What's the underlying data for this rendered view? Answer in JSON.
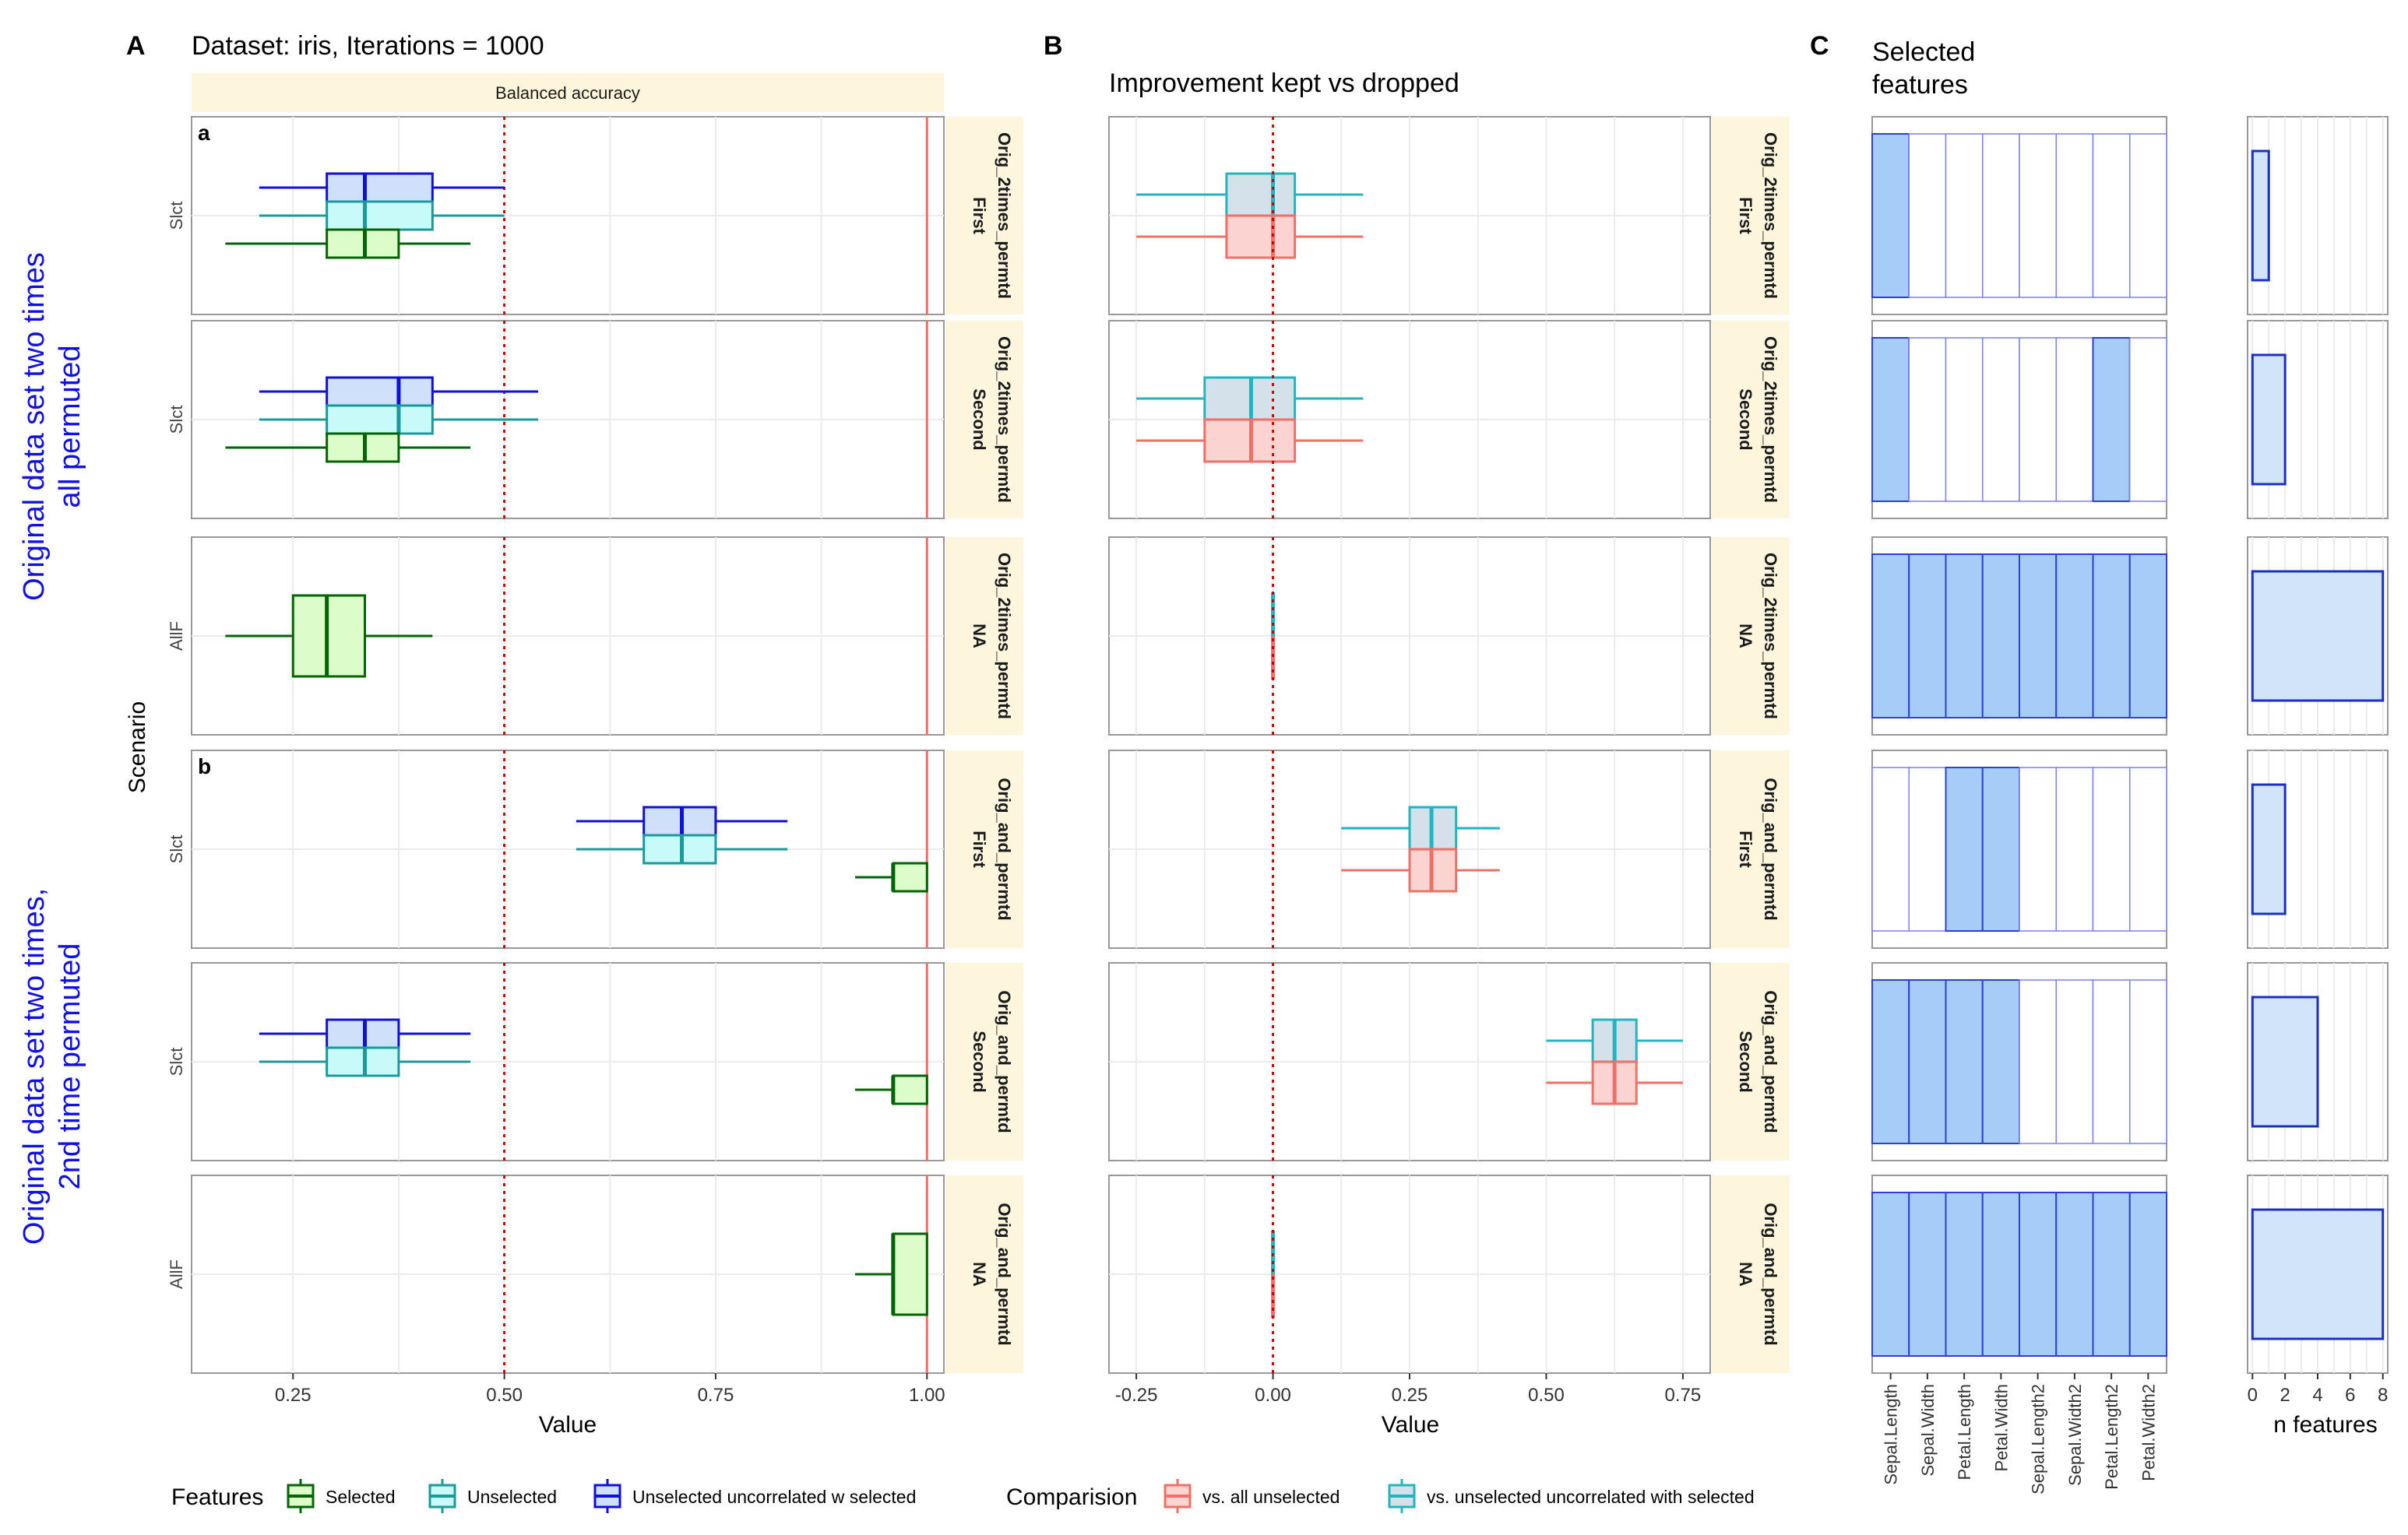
{
  "figure": {
    "panel_labels": {
      "A": "A",
      "B": "B",
      "C": "C"
    },
    "title_A": "Dataset: iris, Iterations = 1000",
    "strip_A": "Balanced accuracy",
    "title_B": "Improvement kept vs dropped",
    "title_C_line1": "Selected",
    "title_C_line2": "features",
    "side_label_top_line1": "Original data set two times",
    "side_label_top_line2": "all permuted",
    "side_label_bottom_line1": "Original data set two times,",
    "side_label_bottom_line2": "2nd time permuted",
    "scenario_axis_label": "Scenario",
    "row_group_tags": {
      "a": "a",
      "b": "b"
    },
    "colors": {
      "selected": "#006400",
      "selected_fill": "#dcfdc9",
      "unselected": "#1a9a9a",
      "unselected_fill": "#c9fafa",
      "uncorrelated": "#1010d8",
      "uncorrelated_fill": "#cfe0fa",
      "vs_all": "#f07067",
      "vs_all_fill": "#fbd3d0",
      "vs_uncor": "#22b5c0",
      "vs_uncor_fill": "#d4e1ea",
      "threshold": "#cc0000",
      "ref_line": "#f07067",
      "strip_fill": "#fdf5dc",
      "feature_fill": "#a6cdf7",
      "feature_line": "#2f3fcf",
      "nfeat_fill": "#d2e4f9",
      "nfeat_line": "#1c2fc5"
    }
  },
  "chart_data": [
    {
      "id": "A",
      "type": "boxplot",
      "orientation": "horizontal",
      "xlabel": "Value",
      "ylabel": "Scenario",
      "xlim": [
        0.13,
        1.02
      ],
      "xticks": [
        0.25,
        0.5,
        0.75,
        1.0
      ],
      "xtick_labels": [
        "0.25",
        "0.50",
        "0.75",
        "1.00"
      ],
      "threshold_line": 0.5,
      "reference_line": 1.0,
      "rows": [
        {
          "y_label": "Slct",
          "strip_line1": "Orig_2times_permtd",
          "strip_line2": "First",
          "tag": "a",
          "boxes": [
            {
              "series": "Unselected uncorrelated w selected",
              "whisker_low": 0.21,
              "q1": 0.29,
              "median": 0.335,
              "q3": 0.415,
              "whisker_high": 0.5
            },
            {
              "series": "Unselected",
              "whisker_low": 0.21,
              "q1": 0.29,
              "median": 0.335,
              "q3": 0.415,
              "whisker_high": 0.5
            },
            {
              "series": "Selected",
              "whisker_low": 0.17,
              "q1": 0.29,
              "median": 0.335,
              "q3": 0.375,
              "whisker_high": 0.46
            }
          ]
        },
        {
          "y_label": "Slct",
          "strip_line1": "Orig_2times_permtd",
          "strip_line2": "Second",
          "tag": "",
          "boxes": [
            {
              "series": "Unselected uncorrelated w selected",
              "whisker_low": 0.21,
              "q1": 0.29,
              "median": 0.375,
              "q3": 0.415,
              "whisker_high": 0.54
            },
            {
              "series": "Unselected",
              "whisker_low": 0.21,
              "q1": 0.29,
              "median": 0.375,
              "q3": 0.415,
              "whisker_high": 0.54
            },
            {
              "series": "Selected",
              "whisker_low": 0.17,
              "q1": 0.29,
              "median": 0.335,
              "q3": 0.375,
              "whisker_high": 0.46
            }
          ]
        },
        {
          "y_label": "AllF",
          "strip_line1": "Orig_2times_permtd",
          "strip_line2": "NA",
          "tag": "",
          "boxes": [
            {
              "series": "Selected",
              "whisker_low": 0.17,
              "q1": 0.25,
              "median": 0.29,
              "q3": 0.335,
              "whisker_high": 0.415
            }
          ]
        },
        {
          "y_label": "Slct",
          "strip_line1": "Orig_and_permtd",
          "strip_line2": "First",
          "tag": "b",
          "boxes": [
            {
              "series": "Unselected uncorrelated w selected",
              "whisker_low": 0.585,
              "q1": 0.665,
              "median": 0.71,
              "q3": 0.75,
              "whisker_high": 0.835
            },
            {
              "series": "Unselected",
              "whisker_low": 0.585,
              "q1": 0.665,
              "median": 0.71,
              "q3": 0.75,
              "whisker_high": 0.835
            },
            {
              "series": "Selected",
              "whisker_low": 0.915,
              "q1": 0.96,
              "median": 0.96,
              "q3": 1.0,
              "whisker_high": 1.0
            }
          ]
        },
        {
          "y_label": "Slct",
          "strip_line1": "Orig_and_permtd",
          "strip_line2": "Second",
          "tag": "",
          "boxes": [
            {
              "series": "Unselected uncorrelated w selected",
              "whisker_low": 0.21,
              "q1": 0.29,
              "median": 0.335,
              "q3": 0.375,
              "whisker_high": 0.46
            },
            {
              "series": "Unselected",
              "whisker_low": 0.21,
              "q1": 0.29,
              "median": 0.335,
              "q3": 0.375,
              "whisker_high": 0.46
            },
            {
              "series": "Selected",
              "whisker_low": 0.915,
              "q1": 0.96,
              "median": 0.96,
              "q3": 1.0,
              "whisker_high": 1.0
            }
          ]
        },
        {
          "y_label": "AllF",
          "strip_line1": "Orig_and_permtd",
          "strip_line2": "NA",
          "tag": "",
          "boxes": [
            {
              "series": "Selected",
              "whisker_low": 0.915,
              "q1": 0.96,
              "median": 0.96,
              "q3": 1.0,
              "whisker_high": 1.0
            }
          ]
        }
      ],
      "legend": {
        "title": "Features",
        "entries": [
          {
            "name": "Selected",
            "series": "Selected"
          },
          {
            "name": "Unselected",
            "series": "Unselected"
          },
          {
            "name": "Unselected uncorrelated w selected",
            "series": "Unselected uncorrelated w selected"
          }
        ]
      }
    },
    {
      "id": "B",
      "type": "boxplot",
      "orientation": "horizontal",
      "title": "Improvement kept vs dropped",
      "xlabel": "Value",
      "xlim": [
        -0.3,
        0.8
      ],
      "xticks": [
        -0.25,
        0.0,
        0.25,
        0.5,
        0.75
      ],
      "xtick_labels": [
        "-0.25",
        "0.00",
        "0.25",
        "0.50",
        "0.75"
      ],
      "threshold_line": 0.0,
      "rows": [
        {
          "strip_line1": "Orig_2times_permtd",
          "strip_line2": "First",
          "boxes": [
            {
              "series": "vs. unselected uncorrelated with selected",
              "whisker_low": -0.25,
              "q1": -0.085,
              "median": 0.0,
              "q3": 0.04,
              "whisker_high": 0.165
            },
            {
              "series": "vs. all unselected",
              "whisker_low": -0.25,
              "q1": -0.085,
              "median": 0.0,
              "q3": 0.04,
              "whisker_high": 0.165
            }
          ]
        },
        {
          "strip_line1": "Orig_2times_permtd",
          "strip_line2": "Second",
          "boxes": [
            {
              "series": "vs. unselected uncorrelated with selected",
              "whisker_low": -0.25,
              "q1": -0.125,
              "median": -0.04,
              "q3": 0.04,
              "whisker_high": 0.165
            },
            {
              "series": "vs. all unselected",
              "whisker_low": -0.25,
              "q1": -0.125,
              "median": -0.04,
              "q3": 0.04,
              "whisker_high": 0.165
            }
          ]
        },
        {
          "strip_line1": "Orig_2times_permtd",
          "strip_line2": "NA",
          "boxes": [
            {
              "series": "vs. unselected uncorrelated with selected",
              "whisker_low": 0.0,
              "q1": 0.0,
              "median": 0.0,
              "q3": 0.0,
              "whisker_high": 0.0
            },
            {
              "series": "vs. all unselected",
              "whisker_low": 0.0,
              "q1": 0.0,
              "median": 0.0,
              "q3": 0.0,
              "whisker_high": 0.0
            }
          ]
        },
        {
          "strip_line1": "Orig_and_permtd",
          "strip_line2": "First",
          "boxes": [
            {
              "series": "vs. unselected uncorrelated with selected",
              "whisker_low": 0.125,
              "q1": 0.25,
              "median": 0.29,
              "q3": 0.335,
              "whisker_high": 0.415
            },
            {
              "series": "vs. all unselected",
              "whisker_low": 0.125,
              "q1": 0.25,
              "median": 0.29,
              "q3": 0.335,
              "whisker_high": 0.415
            }
          ]
        },
        {
          "strip_line1": "Orig_and_permtd",
          "strip_line2": "Second",
          "boxes": [
            {
              "series": "vs. unselected uncorrelated with selected",
              "whisker_low": 0.5,
              "q1": 0.585,
              "median": 0.625,
              "q3": 0.665,
              "whisker_high": 0.75
            },
            {
              "series": "vs. all unselected",
              "whisker_low": 0.5,
              "q1": 0.585,
              "median": 0.625,
              "q3": 0.665,
              "whisker_high": 0.75
            }
          ]
        },
        {
          "strip_line1": "Orig_and_permtd",
          "strip_line2": "NA",
          "boxes": [
            {
              "series": "vs. unselected uncorrelated with selected",
              "whisker_low": 0.0,
              "q1": 0.0,
              "median": 0.0,
              "q3": 0.0,
              "whisker_high": 0.0
            },
            {
              "series": "vs. all unselected",
              "whisker_low": 0.0,
              "q1": 0.0,
              "median": 0.0,
              "q3": 0.0,
              "whisker_high": 0.0
            }
          ]
        }
      ],
      "legend": {
        "title": "Comparision",
        "entries": [
          {
            "name": "vs. all unselected",
            "series": "vs. all unselected"
          },
          {
            "name": "vs. unselected uncorrelated with selected",
            "series": "vs. unselected uncorrelated with selected"
          }
        ]
      }
    },
    {
      "id": "C",
      "type": "heatmap",
      "title": "Selected features",
      "categories": [
        "Sepal.Length",
        "Sepal.Width",
        "Petal.Length",
        "Petal.Width",
        "Sepal.Length2",
        "Sepal.Width2",
        "Petal.Length2",
        "Petal.Width2"
      ],
      "rows": [
        {
          "scenario": "Orig_2times_permtd First",
          "selected": [
            1,
            0,
            0,
            0,
            0,
            0,
            0,
            0
          ]
        },
        {
          "scenario": "Orig_2times_permtd Second",
          "selected": [
            1,
            0,
            0,
            0,
            0,
            0,
            1,
            0
          ]
        },
        {
          "scenario": "Orig_2times_permtd NA",
          "selected": [
            1,
            1,
            1,
            1,
            1,
            1,
            1,
            1
          ]
        },
        {
          "scenario": "Orig_and_permtd First",
          "selected": [
            0,
            0,
            1,
            1,
            0,
            0,
            0,
            0
          ]
        },
        {
          "scenario": "Orig_and_permtd Second",
          "selected": [
            1,
            1,
            1,
            1,
            0,
            0,
            0,
            0
          ]
        },
        {
          "scenario": "Orig_and_permtd NA",
          "selected": [
            1,
            1,
            1,
            1,
            1,
            1,
            1,
            1
          ]
        }
      ]
    },
    {
      "id": "C2",
      "type": "bar",
      "xlabel": "n features",
      "xlim": [
        0,
        8
      ],
      "xticks": [
        0,
        2,
        4,
        6,
        8
      ],
      "xtick_labels": [
        "0",
        "2",
        "4",
        "6",
        "8"
      ],
      "values": [
        1,
        2,
        8,
        2,
        4,
        8
      ]
    }
  ]
}
